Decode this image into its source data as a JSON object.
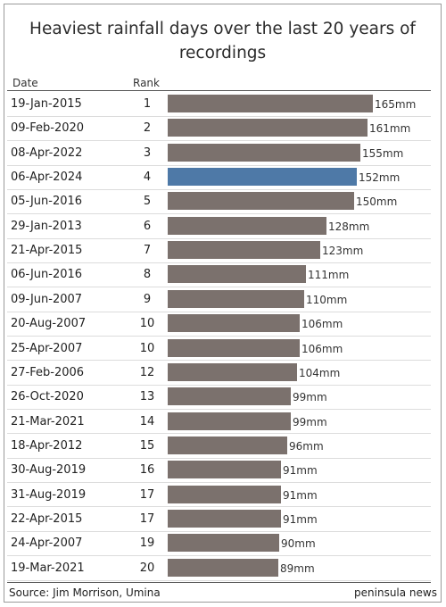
{
  "chart_data": {
    "type": "bar",
    "title": "Heaviest rainfall days over the last 20 years of recordings",
    "column_headers": {
      "date": "Date",
      "rank": "Rank"
    },
    "unit": "mm",
    "xlim": [
      0,
      170
    ],
    "highlight_color": "#4e79a7",
    "bar_color": "#7b716d",
    "rows": [
      {
        "date": "19-Jan-2015",
        "rank": "1",
        "value": 165,
        "label": "165mm",
        "highlight": false
      },
      {
        "date": "09-Feb-2020",
        "rank": "2",
        "value": 161,
        "label": "161mm",
        "highlight": false
      },
      {
        "date": "08-Apr-2022",
        "rank": "3",
        "value": 155,
        "label": "155mm",
        "highlight": false
      },
      {
        "date": "06-Apr-2024",
        "rank": "4",
        "value": 152,
        "label": "152mm",
        "highlight": true
      },
      {
        "date": "05-Jun-2016",
        "rank": "5",
        "value": 150,
        "label": "150mm",
        "highlight": false
      },
      {
        "date": "29-Jan-2013",
        "rank": "6",
        "value": 128,
        "label": "128mm",
        "highlight": false
      },
      {
        "date": "21-Apr-2015",
        "rank": "7",
        "value": 123,
        "label": "123mm",
        "highlight": false
      },
      {
        "date": "06-Jun-2016",
        "rank": "8",
        "value": 111,
        "label": "111mm",
        "highlight": false
      },
      {
        "date": "09-Jun-2007",
        "rank": "9",
        "value": 110,
        "label": "110mm",
        "highlight": false
      },
      {
        "date": "20-Aug-2007",
        "rank": "10",
        "value": 106,
        "label": "106mm",
        "highlight": false
      },
      {
        "date": "25-Apr-2007",
        "rank": "10",
        "value": 106,
        "label": "106mm",
        "highlight": false
      },
      {
        "date": "27-Feb-2006",
        "rank": "12",
        "value": 104,
        "label": "104mm",
        "highlight": false
      },
      {
        "date": "26-Oct-2020",
        "rank": "13",
        "value": 99,
        "label": "99mm",
        "highlight": false
      },
      {
        "date": "21-Mar-2021",
        "rank": "14",
        "value": 99,
        "label": "99mm",
        "highlight": false
      },
      {
        "date": "18-Apr-2012",
        "rank": "15",
        "value": 96,
        "label": "96mm",
        "highlight": false
      },
      {
        "date": "30-Aug-2019",
        "rank": "16",
        "value": 91,
        "label": "91mm",
        "highlight": false
      },
      {
        "date": "31-Aug-2019",
        "rank": "17",
        "value": 91,
        "label": "91mm",
        "highlight": false
      },
      {
        "date": "22-Apr-2015",
        "rank": "17",
        "value": 91,
        "label": "91mm",
        "highlight": false
      },
      {
        "date": "24-Apr-2007",
        "rank": "19",
        "value": 90,
        "label": "90mm",
        "highlight": false
      },
      {
        "date": "19-Mar-2021",
        "rank": "20",
        "value": 89,
        "label": "89mm",
        "highlight": false
      }
    ]
  },
  "footer": {
    "source": "Source: Jim Morrison, Umina",
    "brand": "peninsula news"
  }
}
